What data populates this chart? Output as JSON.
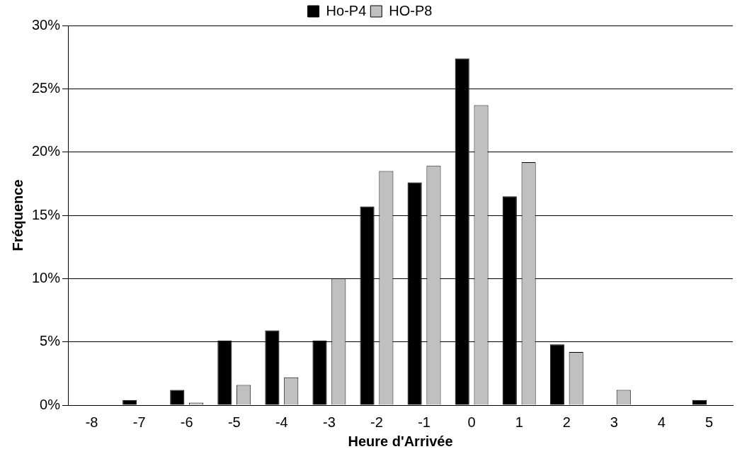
{
  "chart_data": {
    "type": "bar",
    "xlabel": "Heure d'Arrivée",
    "ylabel": "Fréquence",
    "categories": [
      "-8",
      "-7",
      "-6",
      "-5",
      "-4",
      "-3",
      "-2",
      "-1",
      "0",
      "1",
      "2",
      "3",
      "4",
      "5"
    ],
    "series": [
      {
        "name": "Ho-P4",
        "color": "#000000",
        "values": [
          0,
          0.4,
          1.2,
          5.1,
          5.9,
          5.1,
          15.7,
          17.6,
          27.4,
          16.5,
          4.8,
          0,
          0,
          0.4
        ]
      },
      {
        "name": "HO-P8",
        "color": "#c0c0c0",
        "values": [
          0,
          0,
          0.2,
          1.6,
          2.2,
          10.0,
          18.5,
          18.9,
          23.7,
          19.2,
          4.2,
          1.2,
          0,
          0
        ]
      }
    ],
    "ylim": [
      0,
      30
    ],
    "yticks": [
      {
        "value": 0,
        "label": "0%"
      },
      {
        "value": 5,
        "label": "5%"
      },
      {
        "value": 10,
        "label": "10%"
      },
      {
        "value": 15,
        "label": "15%"
      },
      {
        "value": 20,
        "label": "20%"
      },
      {
        "value": 25,
        "label": "25%"
      },
      {
        "value": 30,
        "label": "30%"
      }
    ],
    "grid": "y",
    "legend": "top"
  }
}
